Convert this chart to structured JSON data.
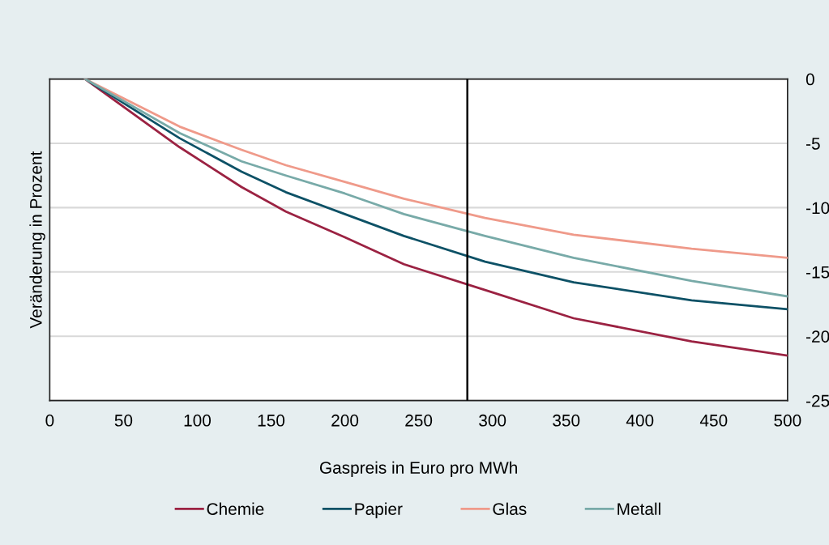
{
  "chart_data": {
    "type": "line",
    "xlabel": "Gaspreis in Euro pro MWh",
    "ylabel": "Veränderung in Prozent",
    "x": [
      24,
      88,
      130,
      160,
      200,
      240,
      295,
      355,
      435,
      500
    ],
    "series": [
      {
        "name": "Chemie",
        "color": "#9b2242",
        "values": [
          0,
          -5.3,
          -8.4,
          -10.3,
          -12.3,
          -14.4,
          -16.4,
          -18.6,
          -20.4,
          -21.5
        ]
      },
      {
        "name": "Papier",
        "color": "#0d5166",
        "values": [
          0,
          -4.6,
          -7.2,
          -8.8,
          -10.5,
          -12.2,
          -14.2,
          -15.8,
          -17.2,
          -17.9
        ]
      },
      {
        "name": "Glas",
        "color": "#ef9a8a",
        "values": [
          0,
          -3.7,
          -5.5,
          -6.7,
          -8.0,
          -9.3,
          -10.8,
          -12.1,
          -13.2,
          -13.9
        ]
      },
      {
        "name": "Metall",
        "color": "#78aaa8",
        "values": [
          0,
          -4.2,
          -6.4,
          -7.5,
          -8.9,
          -10.5,
          -12.2,
          -13.9,
          -15.7,
          -16.9
        ]
      }
    ],
    "xlim": [
      0,
      500
    ],
    "xticks": [
      0,
      50,
      100,
      150,
      200,
      250,
      300,
      350,
      400,
      450,
      500
    ],
    "ylim": [
      -25,
      0
    ],
    "yticks": [
      0,
      -5,
      -10,
      -15,
      -20,
      -25
    ],
    "ref_lines": [
      {
        "axis": "x",
        "value": 283,
        "color": "#000000"
      }
    ],
    "grid": "y",
    "legend": "bottom",
    "marker": "none",
    "line_style": "solid"
  }
}
